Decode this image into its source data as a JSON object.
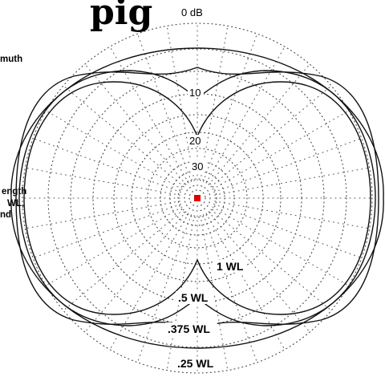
{
  "title_fragment": "pig",
  "side_labels": [
    "muth",
    "ength",
    "WL,",
    "nd"
  ],
  "chart_data": {
    "type": "polar",
    "radial_unit": "dB",
    "ring_labels": [
      "0 dB",
      "10",
      "20",
      "30"
    ],
    "ring_values_db": [
      0,
      -10,
      -20,
      -30
    ],
    "grid": true,
    "series": [
      {
        "name": "1 WL"
      },
      {
        "name": ".5 WL"
      },
      {
        "name": ".375 WL"
      },
      {
        "name": ".25 WL"
      }
    ],
    "center_marker_color": "#e00000"
  }
}
